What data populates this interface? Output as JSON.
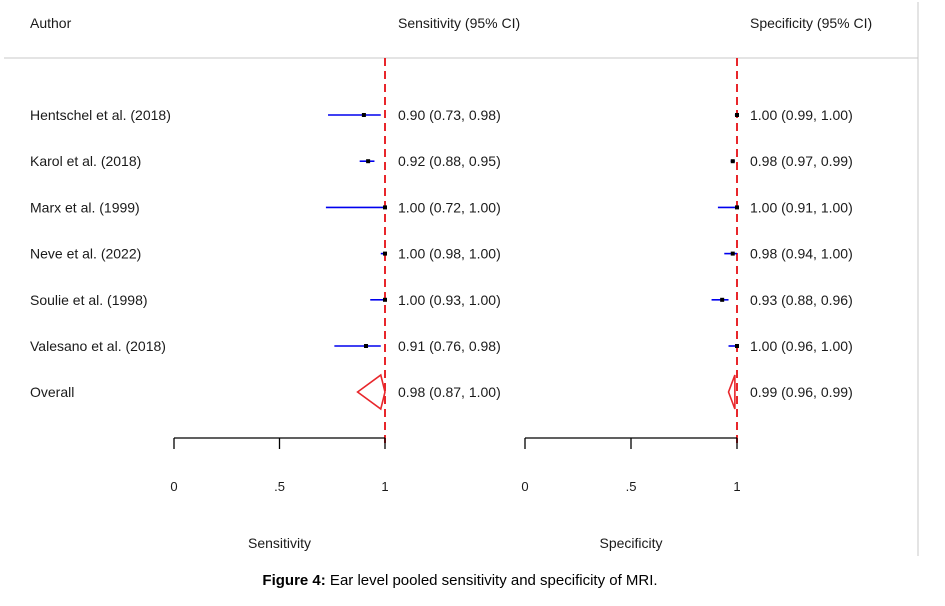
{
  "caption": {
    "label": "Figure 4:",
    "text": " Ear level pooled sensitivity and specificity of MRI."
  },
  "chart_data": {
    "type": "forest",
    "headers": {
      "author": "Author",
      "sensitivity": "Sensitivity (95% CI)",
      "specificity": "Specificity (95% CI)"
    },
    "studies": [
      {
        "author": "Hentschel et al. (2018)",
        "sens": 0.9,
        "sens_ci": [
          0.73,
          0.98
        ],
        "sens_text": "0.90 (0.73, 0.98)",
        "spec": 1.0,
        "spec_ci": [
          0.99,
          1.0
        ],
        "spec_text": "1.00 (0.99, 1.00)"
      },
      {
        "author": "Karol et al. (2018)",
        "sens": 0.92,
        "sens_ci": [
          0.88,
          0.95
        ],
        "sens_text": "0.92 (0.88, 0.95)",
        "spec": 0.98,
        "spec_ci": [
          0.97,
          0.99
        ],
        "spec_text": "0.98 (0.97, 0.99)"
      },
      {
        "author": "Marx et al. (1999)",
        "sens": 1.0,
        "sens_ci": [
          0.72,
          1.0
        ],
        "sens_text": "1.00 (0.72, 1.00)",
        "spec": 1.0,
        "spec_ci": [
          0.91,
          1.0
        ],
        "spec_text": "1.00 (0.91, 1.00)"
      },
      {
        "author": "Neve et al.  (2022)",
        "sens": 1.0,
        "sens_ci": [
          0.98,
          1.0
        ],
        "sens_text": "1.00 (0.98, 1.00)",
        "spec": 0.98,
        "spec_ci": [
          0.94,
          1.0
        ],
        "spec_text": "0.98 (0.94, 1.00)"
      },
      {
        "author": "Soulie et al. (1998)",
        "sens": 1.0,
        "sens_ci": [
          0.93,
          1.0
        ],
        "sens_text": "1.00 (0.93, 1.00)",
        "spec": 0.93,
        "spec_ci": [
          0.88,
          0.96
        ],
        "spec_text": "0.93 (0.88, 0.96)"
      },
      {
        "author": "Valesano et al. (2018)",
        "sens": 0.91,
        "sens_ci": [
          0.76,
          0.98
        ],
        "sens_text": "0.91 (0.76, 0.98)",
        "spec": 1.0,
        "spec_ci": [
          0.96,
          1.0
        ],
        "spec_text": "1.00 (0.96, 1.00)"
      }
    ],
    "overall": {
      "author": "Overall",
      "sens": 0.98,
      "sens_ci": [
        0.87,
        1.0
      ],
      "sens_text": "0.98 (0.87, 1.00)",
      "spec": 0.99,
      "spec_ci": [
        0.96,
        0.99
      ],
      "spec_text": "0.99 (0.96, 0.99)"
    },
    "axes": {
      "sensitivity": {
        "label": "Sensitivity",
        "range": [
          0,
          1
        ],
        "ticks": [
          0,
          0.5,
          1
        ],
        "tick_labels": [
          "0",
          ".5",
          "1"
        ]
      },
      "specificity": {
        "label": "Specificity",
        "range": [
          0,
          1
        ],
        "ticks": [
          0,
          0.5,
          1
        ],
        "tick_labels": [
          "0",
          ".5",
          "1"
        ]
      }
    },
    "reference_line": 1,
    "colors": {
      "ci_line": "#0000ee",
      "reference": "#e8262b",
      "overall": "#e8262b",
      "point": "#000000",
      "divider": "#c8c8c8"
    }
  }
}
